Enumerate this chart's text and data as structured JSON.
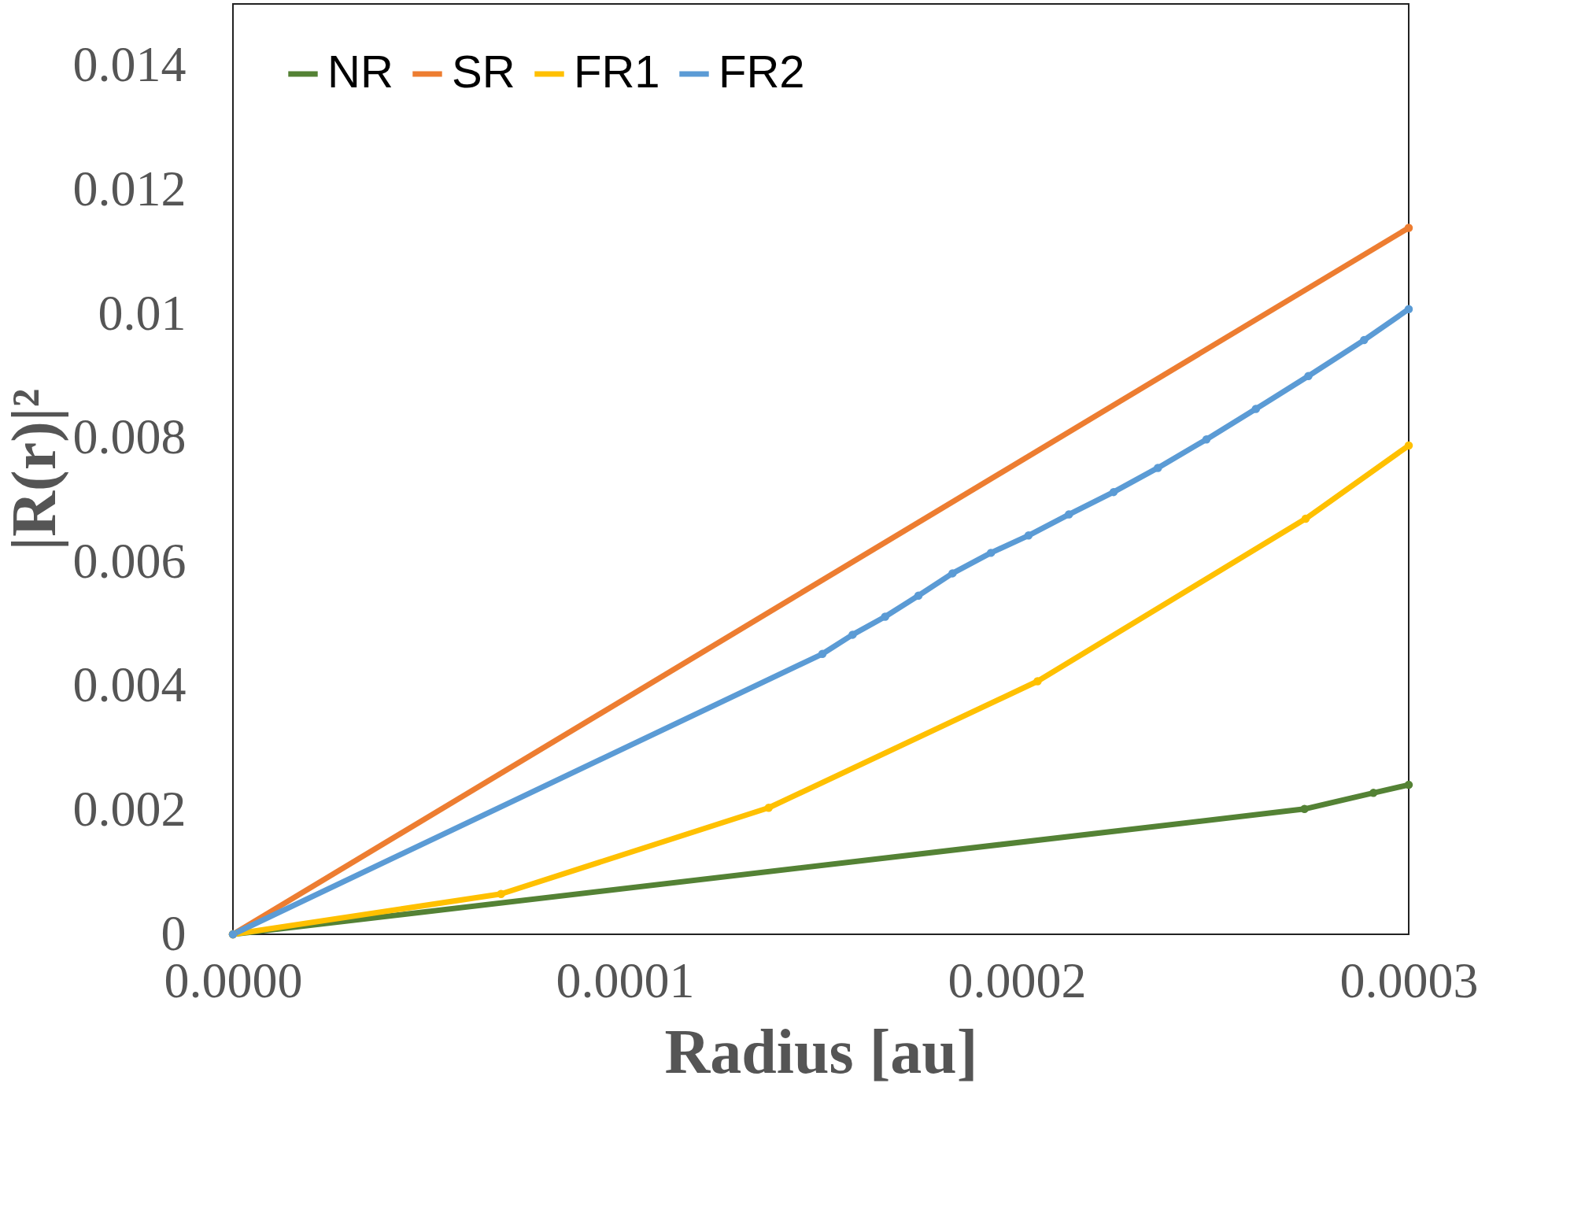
{
  "chart_data": {
    "type": "line",
    "xlabel": "Radius [au]",
    "ylabel": "|R(r)|²",
    "xlim": [
      0,
      0.0003
    ],
    "xticks": [
      {
        "value": 0,
        "label": "0.0000"
      },
      {
        "value": 0.0001,
        "label": "0.0001"
      },
      {
        "value": 0.0002,
        "label": "0.0002"
      },
      {
        "value": 0.0003,
        "label": "0.0003"
      }
    ],
    "ylim": [
      0,
      0.015
    ],
    "yticks": [
      0,
      0.002,
      0.004,
      0.006,
      0.008,
      0.01,
      0.012,
      0.014
    ],
    "grid": false,
    "legend": "top left",
    "marker": "circle",
    "line_style": "solid",
    "series": [
      {
        "name": "NR",
        "color": "#548235",
        "x": [
          0,
          0.0002734,
          0.000291,
          0.0003
        ],
        "values": [
          0,
          0.00202,
          0.00228,
          0.00241
        ]
      },
      {
        "name": "SR",
        "color": "#ed7d31",
        "x": [
          0,
          0.0003
        ],
        "values": [
          0,
          0.01139
        ]
      },
      {
        "name": "FR1",
        "color": "#ffc000",
        "x": [
          0,
          6.84e-05,
          0.0001367,
          0.0002053,
          0.0002737,
          0.0003
        ],
        "values": [
          0,
          0.00065,
          0.00204,
          0.00408,
          0.0067,
          0.00788
        ]
      },
      {
        "name": "FR2",
        "color": "#5b9bd5",
        "x": [
          0,
          0.0001504,
          0.0001581,
          0.0001664,
          0.0001749,
          0.0001836,
          0.0001934,
          0.000203,
          0.0002133,
          0.0002247,
          0.000236,
          0.0002484,
          0.000261,
          0.0002744,
          0.0002886,
          0.0003
        ],
        "values": [
          0,
          0.00452,
          0.00483,
          0.00512,
          0.00546,
          0.00582,
          0.00615,
          0.00643,
          0.00677,
          0.00713,
          0.00752,
          0.00798,
          0.00847,
          0.009,
          0.00958,
          0.01008
        ]
      }
    ]
  }
}
